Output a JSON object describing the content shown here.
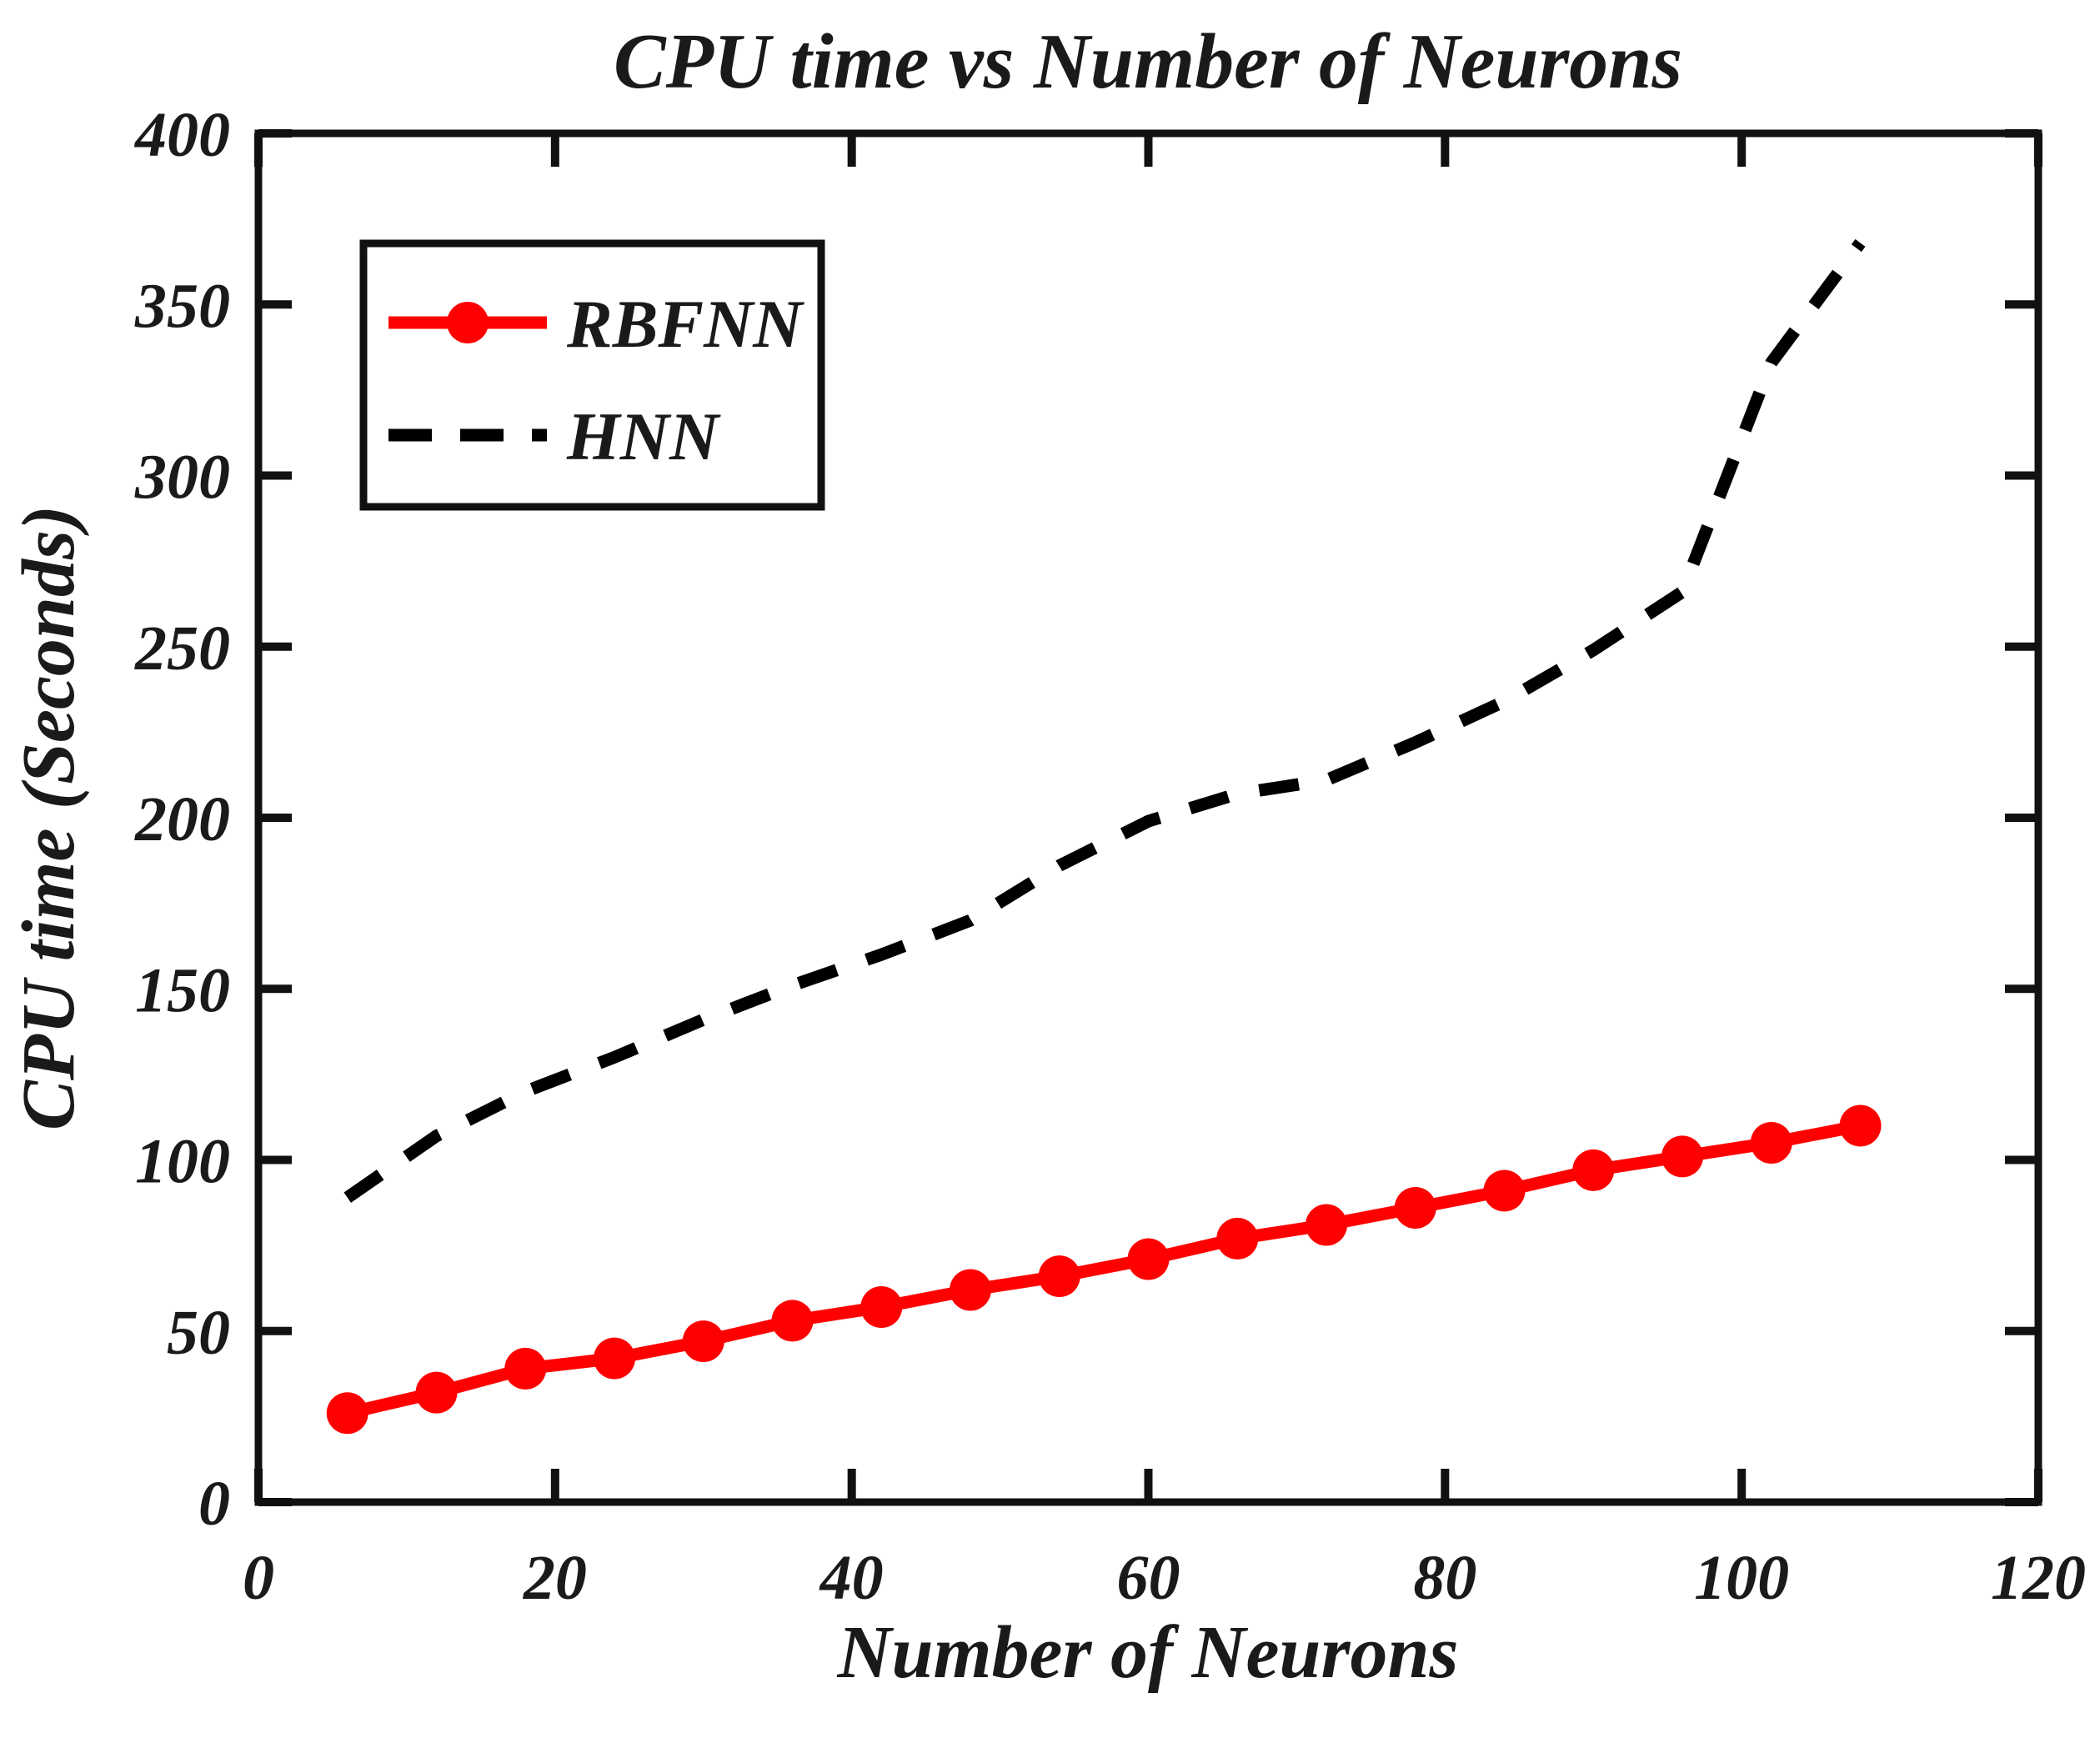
{
  "figure": {
    "background": "#ffffff",
    "axis_color": "#111111",
    "text_color": "#1a1a1a"
  },
  "chart_data": {
    "type": "line",
    "title": "CPU time vs Number of Neurons",
    "xlabel": "Number of Neurons",
    "ylabel": "CPU time (Seconds)",
    "xlim": [
      0,
      120
    ],
    "ylim": [
      0,
      400
    ],
    "x_ticks": [
      0,
      20,
      40,
      60,
      80,
      100,
      120
    ],
    "y_ticks": [
      0,
      50,
      100,
      150,
      200,
      250,
      300,
      350,
      400
    ],
    "grid": false,
    "legend_position": "top-left",
    "x": [
      6,
      12,
      18,
      24,
      30,
      36,
      42,
      48,
      54,
      60,
      66,
      72,
      78,
      84,
      90,
      96,
      102,
      108
    ],
    "series": [
      {
        "name": "RBFNN",
        "color": "#ff0000",
        "style": "solid",
        "marker": "circle",
        "values": [
          26,
          32,
          39,
          42,
          47,
          53,
          57,
          62,
          66,
          71,
          77,
          81,
          86,
          91,
          97,
          101,
          105,
          110
        ]
      },
      {
        "name": "HNN",
        "color": "#000000",
        "style": "dashed",
        "marker": "none",
        "values": [
          89,
          107,
          120,
          130,
          141,
          151,
          160,
          170,
          186,
          199,
          207,
          211,
          222,
          234,
          249,
          266,
          333,
          368
        ]
      }
    ]
  }
}
